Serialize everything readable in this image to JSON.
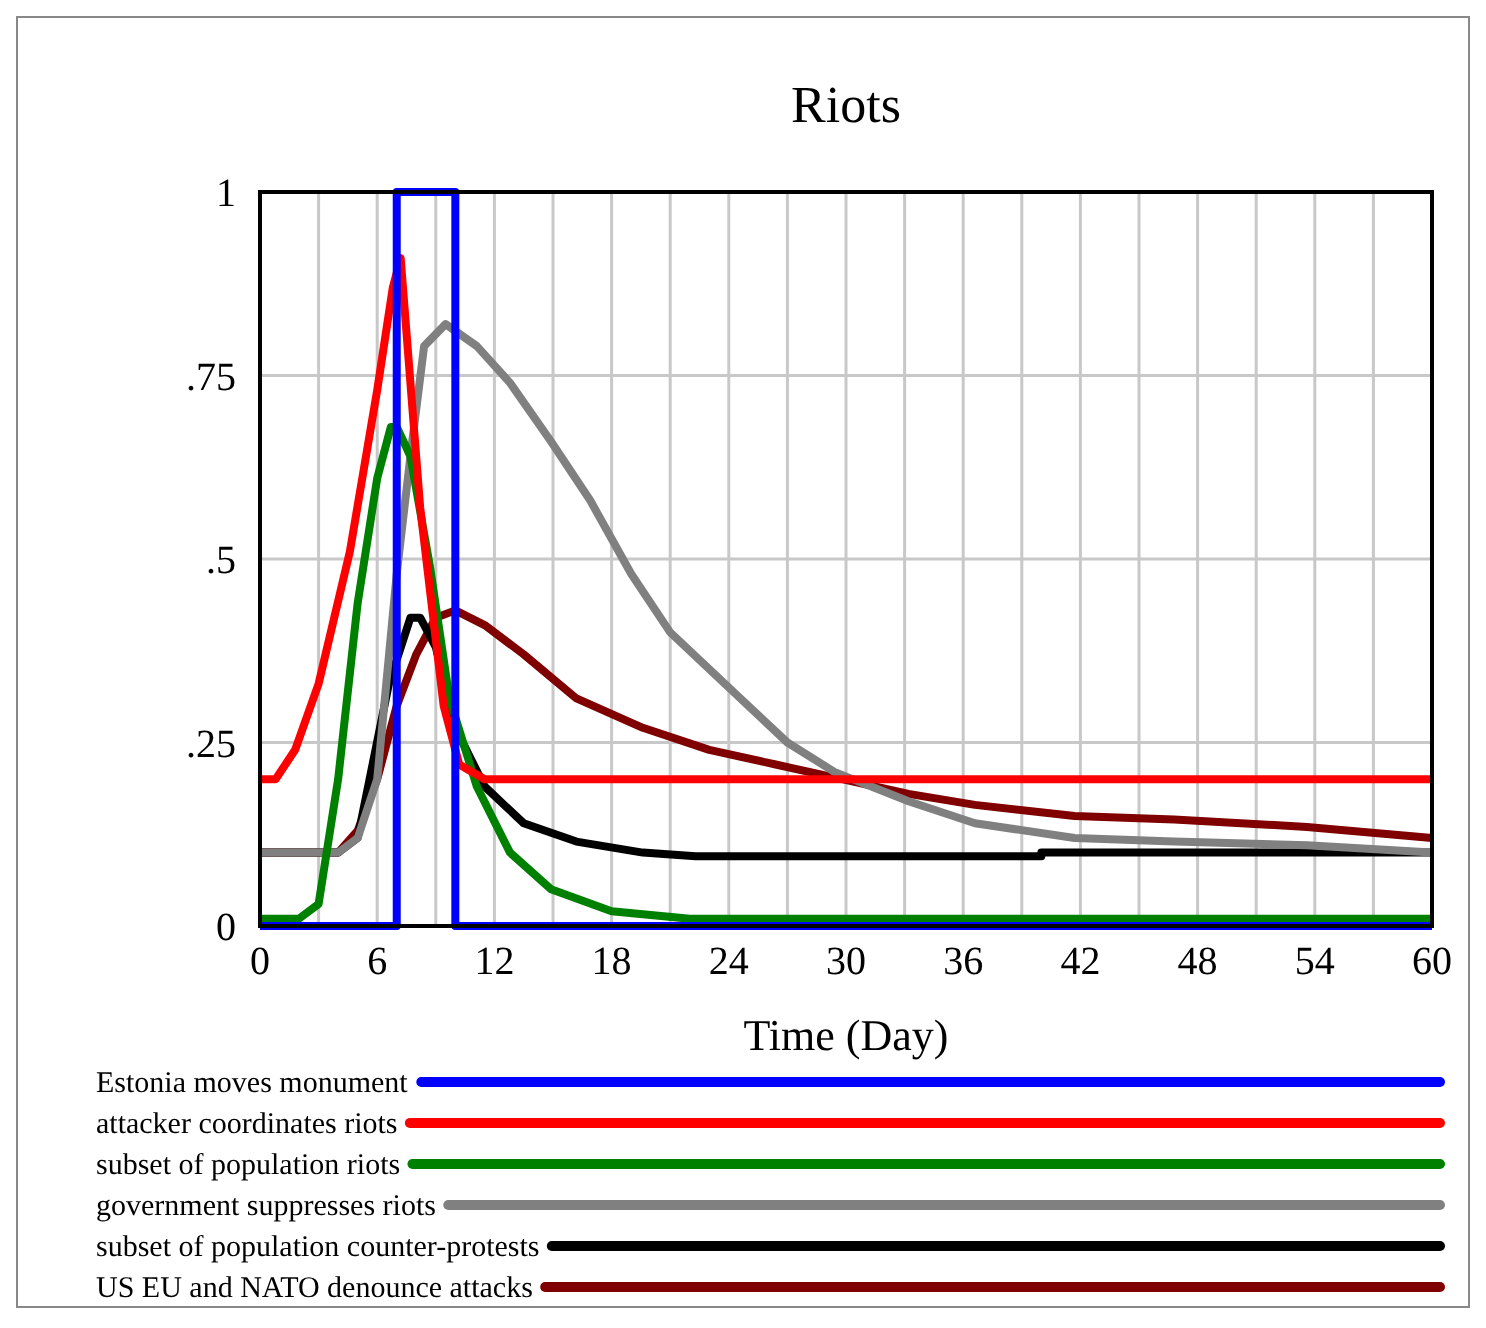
{
  "chart_data": {
    "type": "line",
    "title": "Riots",
    "xlabel": "Time (Day)",
    "xlim": [
      0,
      60
    ],
    "ylim": [
      0,
      1
    ],
    "xticks": [
      0,
      {
        "value": 3,
        "label": null
      },
      6,
      {
        "value": 9,
        "label": null
      },
      12,
      {
        "value": 15,
        "label": null
      },
      18,
      {
        "value": 21,
        "label": null
      },
      24,
      {
        "value": 27,
        "label": null
      },
      30,
      {
        "value": 33,
        "label": null
      },
      36,
      {
        "value": 39,
        "label": null
      },
      42,
      {
        "value": 45,
        "label": null
      },
      48,
      {
        "value": 51,
        "label": null
      },
      54,
      {
        "value": 57,
        "label": null
      },
      60
    ],
    "yticks": [
      0,
      {
        "value": 0.25,
        "label": ".25"
      },
      {
        "value": 0.5,
        "label": ".5"
      },
      {
        "value": 0.75,
        "label": ".75"
      },
      1
    ],
    "grid": true,
    "legend": "bottom",
    "marker": "none",
    "line_style": "solid",
    "series": [
      {
        "name": "Estonia moves monument",
        "color": "#0000ff",
        "x": [
          0,
          7,
          7,
          10,
          10,
          60
        ],
        "values": [
          0,
          0,
          1,
          1,
          0,
          0
        ]
      },
      {
        "name": "attacker coordinates riots",
        "color": "#ff0000",
        "x": [
          0,
          0.8,
          1.8,
          3,
          4.6,
          6,
          6.8,
          7.2,
          8.2,
          9.4,
          10.2,
          11.5,
          60
        ],
        "values": [
          0.2,
          0.2,
          0.24,
          0.33,
          0.51,
          0.73,
          0.87,
          0.91,
          0.57,
          0.3,
          0.22,
          0.2,
          0.2
        ]
      },
      {
        "name": "subset of population riots",
        "color": "#008000",
        "x": [
          0,
          2,
          3,
          4,
          5,
          6,
          6.7,
          7,
          7.7,
          8.7,
          9.7,
          11.1,
          12.8,
          14.9,
          18,
          22,
          60
        ],
        "values": [
          0.01,
          0.01,
          0.03,
          0.2,
          0.44,
          0.61,
          0.68,
          0.68,
          0.64,
          0.49,
          0.31,
          0.19,
          0.1,
          0.05,
          0.02,
          0.01,
          0.01
        ]
      },
      {
        "name": "government suppresses riots",
        "color": "#808080",
        "x": [
          0,
          4,
          5,
          6,
          7,
          7.7,
          8.4,
          9.5,
          11.1,
          12.8,
          14.9,
          16.9,
          19,
          21,
          23,
          25,
          27,
          29.4,
          33.2,
          36.6,
          41.7,
          46.8,
          53.6,
          60
        ],
        "values": [
          0.1,
          0.1,
          0.12,
          0.2,
          0.48,
          0.64,
          0.79,
          0.82,
          0.79,
          0.74,
          0.66,
          0.58,
          0.48,
          0.4,
          0.35,
          0.3,
          0.25,
          0.21,
          0.17,
          0.14,
          0.12,
          0.115,
          0.11,
          0.1
        ]
      },
      {
        "name": "subset of population counter-protests",
        "color": "#000000",
        "x": [
          0,
          4,
          5,
          6.6,
          7.7,
          8.2,
          9,
          10,
          11.5,
          13.5,
          16.2,
          19.6,
          22.3,
          40,
          40,
          60
        ],
        "values": [
          0.1,
          0.1,
          0.12,
          0.33,
          0.42,
          0.42,
          0.38,
          0.27,
          0.19,
          0.14,
          0.115,
          0.1,
          0.095,
          0.095,
          0.1,
          0.1
        ]
      },
      {
        "name": "US EU and NATO denounce attacks",
        "color": "#800000",
        "x": [
          0,
          4,
          5,
          6,
          7,
          8,
          9,
          10,
          11.5,
          13.5,
          16.2,
          19.6,
          23,
          26.4,
          29.8,
          33.2,
          36.6,
          41.7,
          46.8,
          53.6,
          60
        ],
        "values": [
          0.1,
          0.1,
          0.13,
          0.2,
          0.3,
          0.37,
          0.42,
          0.43,
          0.41,
          0.37,
          0.31,
          0.27,
          0.24,
          0.22,
          0.2,
          0.18,
          0.165,
          0.15,
          0.145,
          0.135,
          0.12
        ]
      }
    ]
  }
}
